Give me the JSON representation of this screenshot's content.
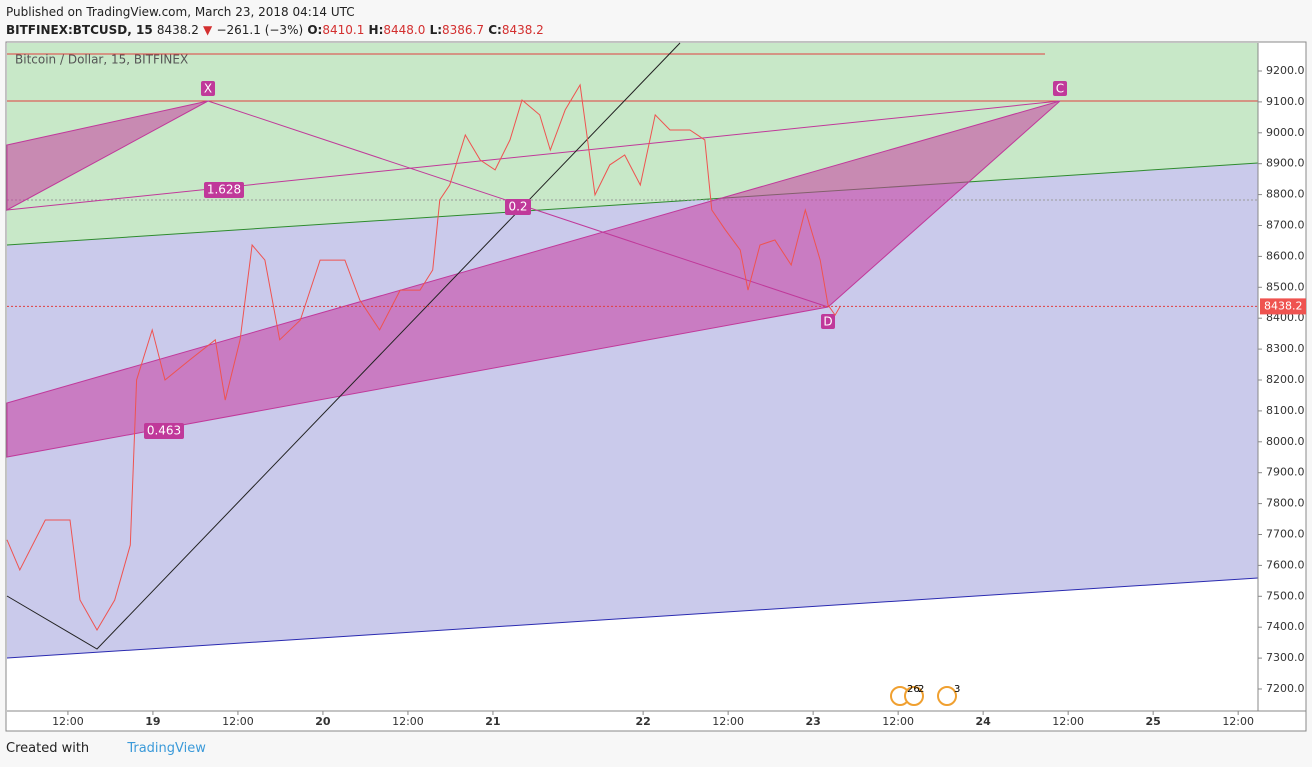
{
  "header": {
    "published": "Published on TradingView.com, March 23, 2018 04:14 UTC",
    "symbol": "BITFINEX:BTCUSD, 15",
    "price": "8438.2",
    "arrow": "▼",
    "change": "−261.1 (−3%)",
    "open_label": "O:",
    "open": "8410.1",
    "high_label": "H:",
    "high": "8448.0",
    "low_label": "L:",
    "low": "8386.7",
    "close_label": "C:",
    "close": "8438.2"
  },
  "chart_data": {
    "type": "line",
    "x": [
      3.4,
      5.2,
      8.8,
      12.3,
      13.7,
      16.1,
      18.6,
      20.8,
      21.7,
      23.9,
      25.7,
      29.2,
      32.8,
      34.2,
      36.3,
      38.0,
      39.8,
      41.9,
      44.8,
      47.6,
      51.1,
      53.2,
      56.0,
      58.9,
      61.7,
      63.5,
      64.5,
      65.9,
      68.1,
      70.2,
      72.3,
      74.4,
      76.1,
      78.6,
      80.1,
      82.2,
      84.3,
      86.4,
      88.5,
      90.6,
      92.8,
      94.9,
      97.0,
      99.8,
      101.9,
      102.9,
      104.8,
      106.9,
      108.0,
      109.7,
      111.8,
      114.1,
      116.1,
      118.2,
      119.3,
      120.3,
      121.0
    ],
    "series": [
      {
        "name": "Bitcoin / Dollar, 15, BITFINEX",
        "color": "#ef5350",
        "values": [
          7683,
          7585,
          7747,
          7747,
          7488,
          7391,
          7488,
          7666,
          8200,
          8362,
          8200,
          8265,
          8330,
          8135,
          8330,
          8637,
          8588,
          8330,
          8394,
          8588,
          8588,
          8459,
          8362,
          8491,
          8491,
          8556,
          8783,
          8831,
          8993,
          8912,
          8880,
          8977,
          9106,
          9058,
          8944,
          9074,
          9155,
          8799,
          8896,
          8928,
          8831,
          9058,
          9009,
          9009,
          8977,
          8750,
          8686,
          8621,
          8491,
          8637,
          8653,
          8572,
          8750,
          8588,
          8443,
          8410,
          8438
        ]
      }
    ],
    "xlim": [
      3.4,
      180.0
    ],
    "xticks": [
      {
        "value": 12,
        "label": "12:00"
      },
      {
        "value": 24,
        "label": "19"
      },
      {
        "value": 36,
        "label": "12:00"
      },
      {
        "value": 48,
        "label": "20"
      },
      {
        "value": 60,
        "label": "12:00"
      },
      {
        "value": 72,
        "label": "21"
      },
      {
        "value": 93.2,
        "label": "22"
      },
      {
        "value": 105.2,
        "label": "12:00"
      },
      {
        "value": 117.2,
        "label": "23"
      },
      {
        "value": 129.2,
        "label": "12:00"
      },
      {
        "value": 141.2,
        "label": "24"
      },
      {
        "value": 153.2,
        "label": "12:00"
      },
      {
        "value": 165.2,
        "label": "25"
      },
      {
        "value": 177.2,
        "label": "12:00"
      }
    ],
    "ylim": [
      7128.8,
      9290.6
    ],
    "yticks": [
      {
        "value": 7200,
        "label": "7200.0"
      },
      {
        "value": 7300,
        "label": "7300.0"
      },
      {
        "value": 7400,
        "label": "7400.0"
      },
      {
        "value": 7500,
        "label": "7500.0"
      },
      {
        "value": 7600,
        "label": "7600.0"
      },
      {
        "value": 7700,
        "label": "7700.0"
      },
      {
        "value": 7800,
        "label": "7800.0"
      },
      {
        "value": 7900,
        "label": "7900.0"
      },
      {
        "value": 8000,
        "label": "8000.0"
      },
      {
        "value": 8100,
        "label": "8100.0"
      },
      {
        "value": 8200,
        "label": "8200.0"
      },
      {
        "value": 8300,
        "label": "8300.0"
      },
      {
        "value": 8400,
        "label": "8400.0"
      },
      {
        "value": 8500,
        "label": "8500.0"
      },
      {
        "value": 8600,
        "label": "8600.0"
      },
      {
        "value": 8700,
        "label": "8700.0"
      },
      {
        "value": 8800,
        "label": "8800.0"
      },
      {
        "value": 8900,
        "label": "8900.0"
      },
      {
        "value": 9000,
        "label": "9000.0"
      },
      {
        "value": 9100,
        "label": "9100.0"
      },
      {
        "value": 9200,
        "label": "9200.0"
      }
    ],
    "last_price": 8438.2,
    "annotations": {
      "x": "X",
      "c": "C",
      "d": "D",
      "fib1": "1.628",
      "fib2": "0.2",
      "fib3": "0.463",
      "event1": "26",
      "event2": "2",
      "event3": "3"
    }
  },
  "footer": {
    "created": "Created with",
    "brand": "TradingView"
  }
}
